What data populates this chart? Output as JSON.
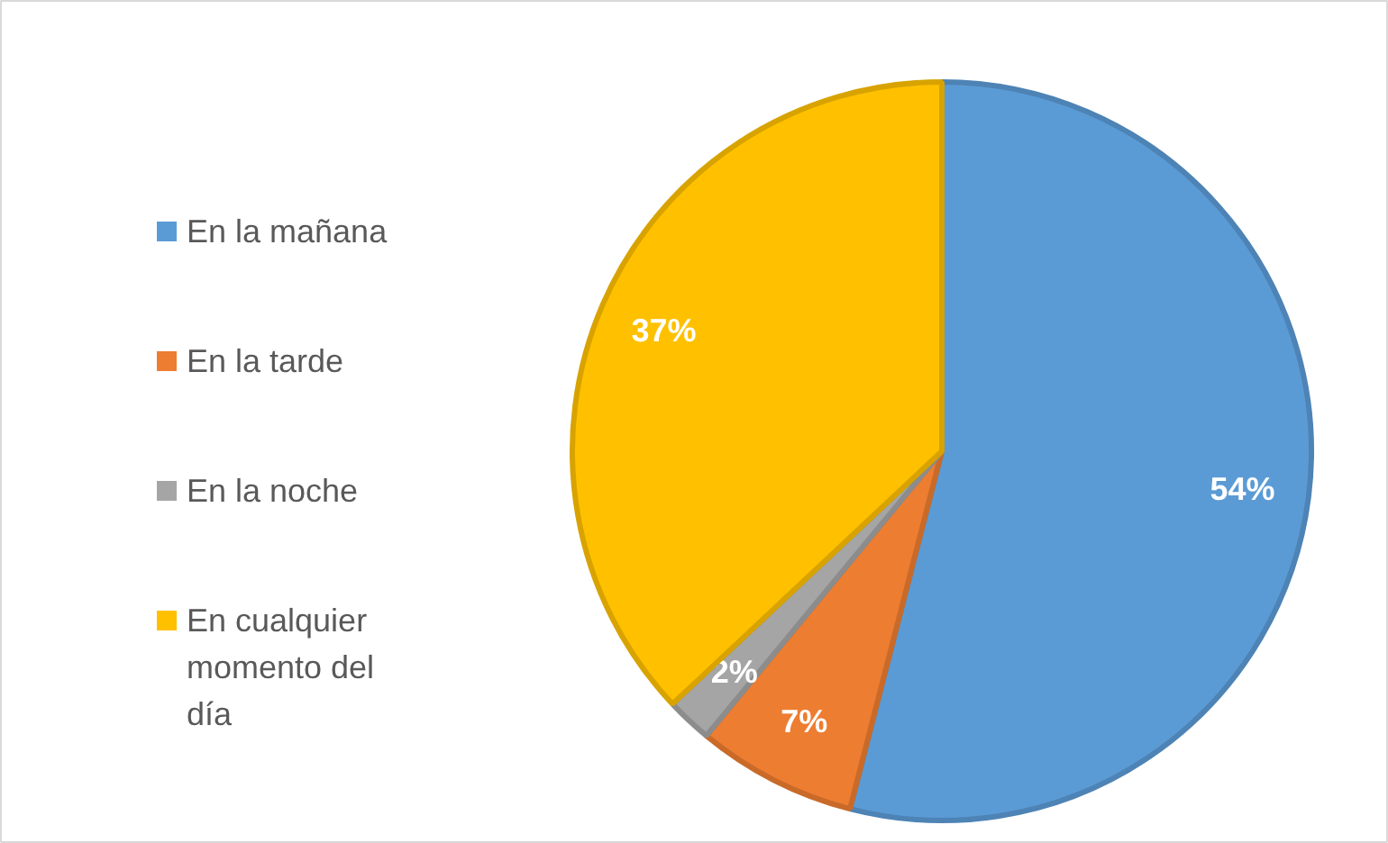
{
  "chart_data": {
    "type": "pie",
    "categories": [
      "En la mañana",
      "En la tarde",
      "En la noche",
      "En cualquier momento del día"
    ],
    "values": [
      54,
      7,
      2,
      37
    ],
    "colors": [
      "#5b9bd5",
      "#ed7d31",
      "#a5a5a5",
      "#ffc000"
    ],
    "value_labels": [
      "54%",
      "7%",
      "2%",
      "37%"
    ],
    "legend": "left"
  }
}
